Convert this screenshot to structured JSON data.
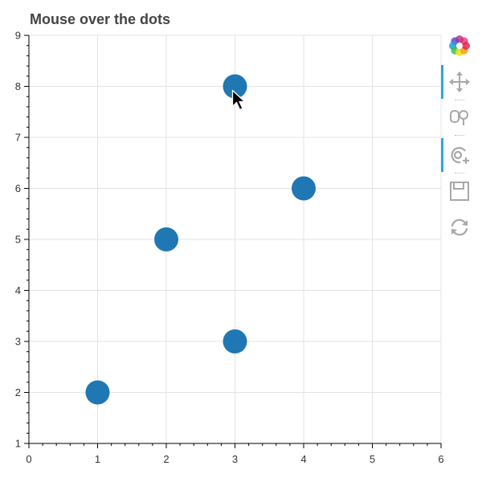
{
  "title": "Mouse over the dots",
  "colors": {
    "dot": "#1f77b4",
    "grid": "#e3e3e3",
    "axis": "#000000",
    "tick_label": "#333333",
    "toolbar_icon": "#a8a8a8",
    "toolbar_active": "#26aae1",
    "background": "#ffffff"
  },
  "chart_data": {
    "type": "scatter",
    "title": "Mouse over the dots",
    "x": [
      1,
      2,
      3,
      4,
      3
    ],
    "y": [
      2,
      5,
      8,
      6,
      3
    ],
    "xlim": [
      0,
      6
    ],
    "ylim": [
      1,
      9
    ],
    "x_ticks": [
      0,
      1,
      2,
      3,
      4,
      5,
      6
    ],
    "y_ticks": [
      1,
      2,
      3,
      4,
      5,
      6,
      7,
      8,
      9
    ],
    "xlabel": "",
    "ylabel": "",
    "grid": true,
    "marker": "circle",
    "color": "#1f77b4"
  },
  "toolbar": {
    "tools": [
      {
        "icon": "bokeh-logo-icon",
        "active": false
      },
      {
        "icon": "pan-icon",
        "active": true
      },
      {
        "icon": "box-zoom-icon",
        "active": false
      },
      {
        "icon": "wheel-zoom-icon",
        "active": true
      },
      {
        "icon": "save-icon",
        "active": false
      },
      {
        "icon": "reset-icon",
        "active": false
      }
    ]
  },
  "cursor": {
    "icon": "mouse-pointer-icon",
    "over_point": 2
  }
}
